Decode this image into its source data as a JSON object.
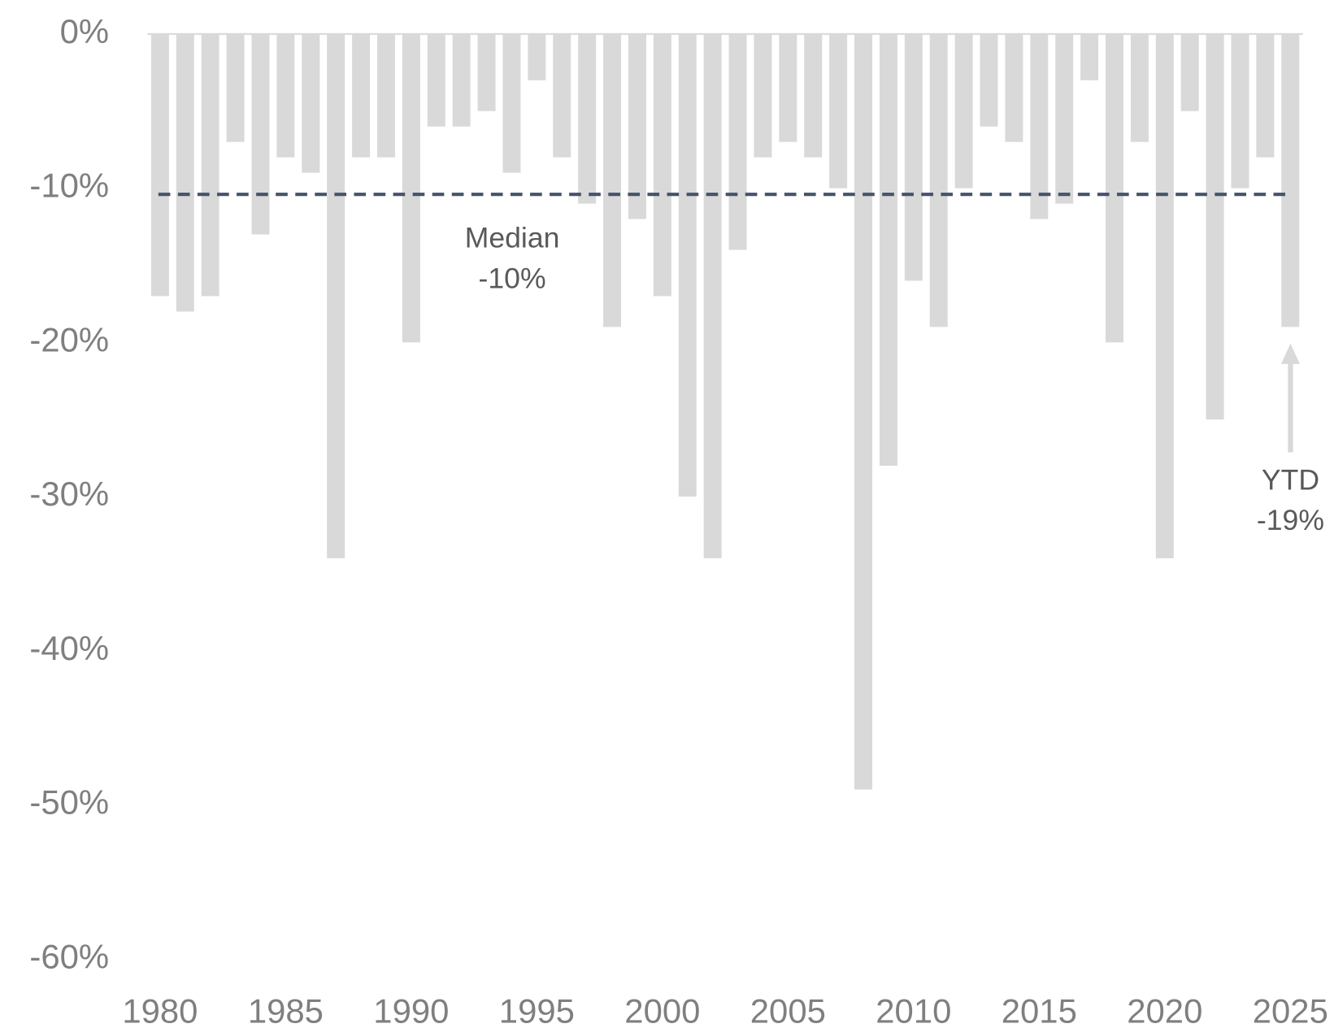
{
  "chart_data": {
    "type": "bar",
    "categories": [
      "1980",
      null,
      null,
      null,
      null,
      "1985",
      null,
      null,
      null,
      null,
      "1990",
      null,
      null,
      null,
      null,
      "1995",
      null,
      null,
      null,
      null,
      "2000",
      null,
      null,
      null,
      null,
      "2005",
      null,
      null,
      null,
      null,
      "2010",
      null,
      null,
      null,
      null,
      "2015",
      null,
      null,
      null,
      null,
      "2020",
      null,
      null,
      null,
      null,
      "2025"
    ],
    "values": [
      -17,
      -18,
      -17,
      -7,
      -13,
      -8,
      -9,
      -34,
      -8,
      -8,
      -20,
      -6,
      -6,
      -5,
      -9,
      -3,
      -8,
      -11,
      -19,
      -12,
      -17,
      -30,
      -34,
      -14,
      -8,
      -7,
      -8,
      -10,
      -49,
      -28,
      -16,
      -19,
      -10,
      -6,
      -7,
      -12,
      -11,
      -3,
      -20,
      -7,
      -34,
      -5,
      -25,
      -10,
      -8,
      -19
    ],
    "color": "#d9d9d9",
    "ylim": [
      0,
      -60
    ],
    "yticks": [
      {
        "value": 0,
        "label": "0%"
      },
      {
        "value": -10,
        "label": "-10%"
      },
      {
        "value": -20,
        "label": "-20%"
      },
      {
        "value": -30,
        "label": "-30%"
      },
      {
        "value": -40,
        "label": "-40%"
      },
      {
        "value": -50,
        "label": "-50%"
      },
      {
        "value": -60,
        "label": "-60%"
      }
    ],
    "median": {
      "value": -10.4,
      "color": "#44546a",
      "name": "Median",
      "label": "-10%"
    },
    "ytd_annotation": {
      "name": "YTD",
      "label": "-19%"
    }
  }
}
